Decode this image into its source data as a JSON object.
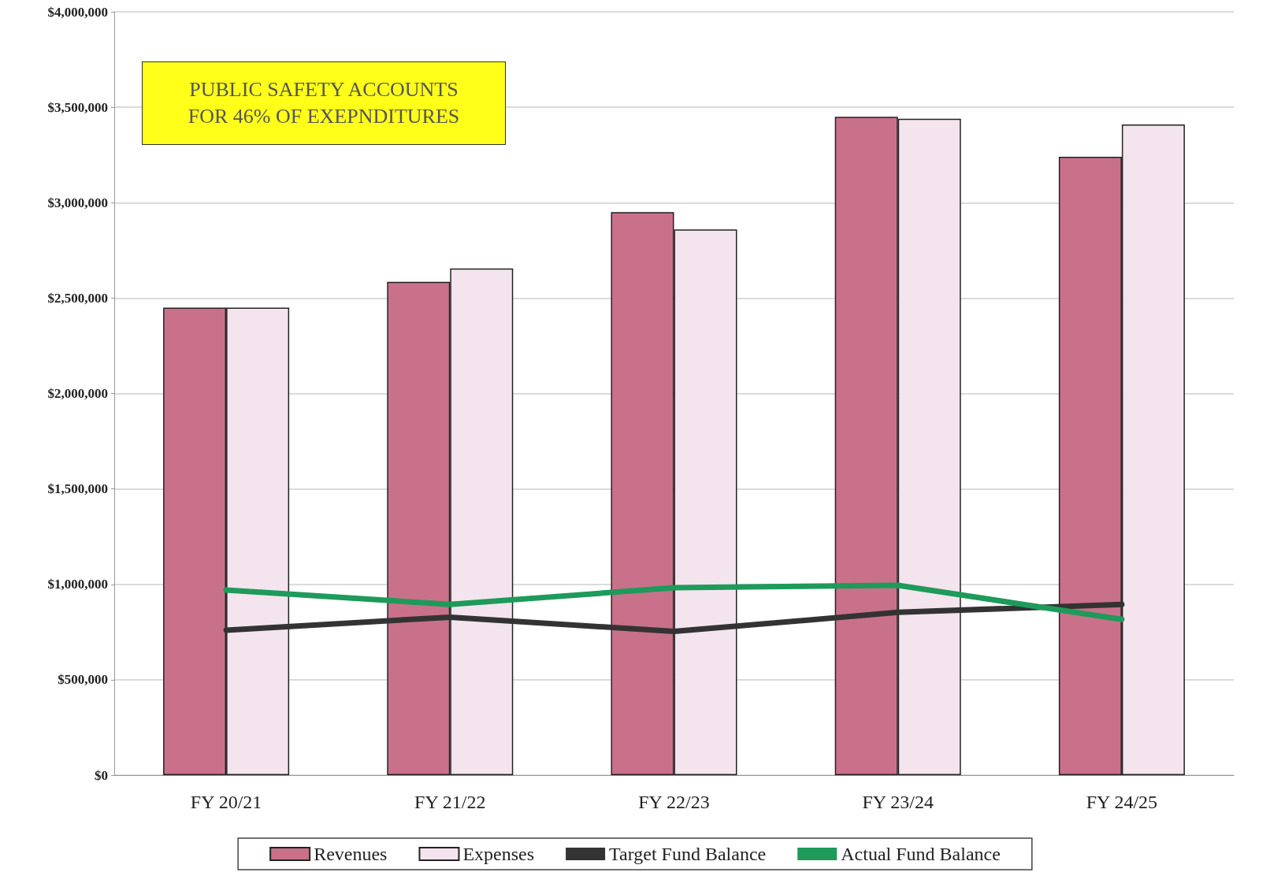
{
  "chart_data": {
    "type": "bar",
    "categories": [
      "FY 20/21",
      "FY 21/22",
      "FY 22/23",
      "FY 23/24",
      "FY 24/25"
    ],
    "series": [
      {
        "name": "Revenues",
        "color": "#c9718a",
        "values": [
          2450000,
          2585000,
          2950000,
          3450000,
          3240000
        ]
      },
      {
        "name": "Expenses",
        "color": "#f3e4ee",
        "values": [
          2450000,
          2655000,
          2860000,
          3440000,
          3410000
        ]
      },
      {
        "name": "Target Fund Balance",
        "type": "line",
        "color": "#333333",
        "values": [
          760000,
          828000,
          753000,
          853000,
          895000
        ]
      },
      {
        "name": "Actual Fund Balance",
        "type": "line",
        "color": "#1e9a5a",
        "values": [
          970000,
          895000,
          982000,
          995000,
          816000
        ]
      }
    ],
    "ylim": [
      0,
      4000000
    ],
    "yticks": [
      {
        "value": 0,
        "label": "$0"
      },
      {
        "value": 500000,
        "label": "$500,000"
      },
      {
        "value": 1000000,
        "label": "$1,000,000"
      },
      {
        "value": 1500000,
        "label": "$1,500,000"
      },
      {
        "value": 2000000,
        "label": "$2,000,000"
      },
      {
        "value": 2500000,
        "label": "$2,500,000"
      },
      {
        "value": 3000000,
        "label": "$3,000,000"
      },
      {
        "value": 3500000,
        "label": "$3,500,000"
      },
      {
        "value": 4000000,
        "label": "$4,000,000"
      }
    ],
    "grid": "y",
    "legend": "bottom",
    "marker": "none",
    "line_style": "solid",
    "annotations": [
      "PUBLIC SAFETY ACCOUNTS\nFOR 46% OF EXEPNDITURES"
    ]
  }
}
